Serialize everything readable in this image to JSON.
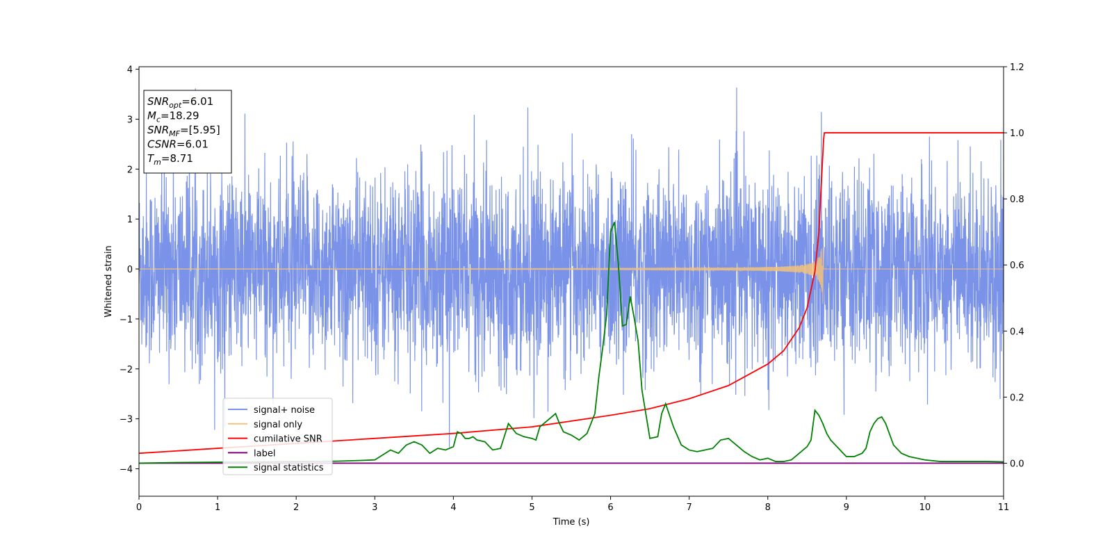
{
  "chart_data": {
    "type": "line",
    "title": "",
    "xlabel": "Time (s)",
    "ylabel": "Whitened strain",
    "y2label": "",
    "xlim": [
      0,
      11
    ],
    "ylim": [
      -4.55,
      4.05
    ],
    "y2lim": [
      -0.1,
      1.2
    ],
    "x_ticks": [
      0,
      1,
      2,
      3,
      4,
      5,
      6,
      7,
      8,
      9,
      10,
      11
    ],
    "y_ticks": [
      -4,
      -3,
      -2,
      -1,
      0,
      1,
      2,
      3,
      4
    ],
    "y2_ticks": [
      0.0,
      0.2,
      0.4,
      0.6,
      0.8,
      1.0,
      1.2
    ],
    "y2_tick_labels": [
      "0.0",
      "0.2",
      "0.4",
      "0.6",
      "0.8",
      "1.0",
      "1.2"
    ],
    "grid": false,
    "legend_position": "lower-left",
    "annotation_box": [
      {
        "base": "SNR",
        "sub": "opt",
        "value": "=6.01"
      },
      {
        "base": "M",
        "sub": "c",
        "value": "=18.29"
      },
      {
        "base": "SNR",
        "sub": "MF",
        "value": "=[5.95]"
      },
      {
        "base": "CSNR",
        "sub": "",
        "value": "=6.01"
      },
      {
        "base": "T",
        "sub": "m",
        "value": "=8.71"
      }
    ],
    "series": [
      {
        "name": "signal+ noise",
        "axis": "left",
        "color": "#7a93e8",
        "description_values": {
          "noise_std": 0.95,
          "y_min": -4.15,
          "y_max": 3.65
        }
      },
      {
        "name": "signal only",
        "axis": "left",
        "color": "#f5c27a",
        "chirp_end": 8.71,
        "amplitude_max": 1.05
      },
      {
        "name": "cumilative SNR",
        "axis": "right",
        "color": "#ff0000",
        "x": [
          0,
          1,
          2,
          3,
          4,
          5,
          6,
          6.5,
          7,
          7.5,
          8,
          8.2,
          8.4,
          8.5,
          8.6,
          8.65,
          8.71,
          8.72,
          11
        ],
        "y": [
          0.03,
          0.045,
          0.06,
          0.075,
          0.09,
          0.11,
          0.145,
          0.165,
          0.195,
          0.235,
          0.3,
          0.34,
          0.41,
          0.47,
          0.58,
          0.7,
          0.98,
          1.0,
          1.0
        ]
      },
      {
        "name": "label",
        "axis": "right",
        "color": "#800080",
        "x": [
          0,
          11
        ],
        "y": [
          0.0,
          0.0
        ]
      },
      {
        "name": "signal statistics",
        "axis": "right",
        "color": "#008000",
        "x": [
          0,
          0.5,
          1,
          1.5,
          2,
          2.5,
          2.8,
          3.0,
          3.1,
          3.2,
          3.3,
          3.4,
          3.5,
          3.55,
          3.6,
          3.7,
          3.8,
          3.9,
          4.0,
          4.05,
          4.1,
          4.15,
          4.2,
          4.25,
          4.3,
          4.4,
          4.5,
          4.6,
          4.7,
          4.8,
          4.9,
          5.0,
          5.05,
          5.1,
          5.2,
          5.3,
          5.35,
          5.4,
          5.5,
          5.6,
          5.7,
          5.8,
          5.85,
          5.9,
          5.95,
          6.0,
          6.05,
          6.1,
          6.15,
          6.2,
          6.25,
          6.3,
          6.35,
          6.4,
          6.5,
          6.6,
          6.65,
          6.7,
          6.8,
          6.9,
          7.0,
          7.1,
          7.2,
          7.3,
          7.4,
          7.5,
          7.6,
          7.7,
          7.8,
          7.9,
          8.0,
          8.1,
          8.2,
          8.3,
          8.4,
          8.5,
          8.55,
          8.6,
          8.65,
          8.7,
          8.75,
          8.8,
          8.9,
          9.0,
          9.1,
          9.2,
          9.25,
          9.3,
          9.35,
          9.4,
          9.45,
          9.5,
          9.6,
          9.7,
          9.8,
          9.9,
          10.0,
          10.2,
          10.5,
          10.8,
          11.0
        ],
        "y": [
          0.0,
          0.002,
          0.003,
          0.004,
          0.005,
          0.006,
          0.008,
          0.01,
          0.025,
          0.04,
          0.03,
          0.055,
          0.065,
          0.06,
          0.055,
          0.03,
          0.045,
          0.04,
          0.05,
          0.095,
          0.09,
          0.075,
          0.075,
          0.08,
          0.07,
          0.065,
          0.04,
          0.045,
          0.12,
          0.09,
          0.08,
          0.075,
          0.07,
          0.11,
          0.13,
          0.15,
          0.12,
          0.095,
          0.085,
          0.07,
          0.09,
          0.15,
          0.26,
          0.35,
          0.45,
          0.7,
          0.73,
          0.6,
          0.415,
          0.42,
          0.505,
          0.44,
          0.37,
          0.22,
          0.075,
          0.08,
          0.15,
          0.18,
          0.11,
          0.055,
          0.04,
          0.035,
          0.04,
          0.045,
          0.07,
          0.075,
          0.055,
          0.035,
          0.02,
          0.01,
          0.015,
          0.005,
          0.005,
          0.01,
          0.03,
          0.05,
          0.07,
          0.16,
          0.145,
          0.12,
          0.09,
          0.07,
          0.045,
          0.02,
          0.02,
          0.03,
          0.045,
          0.095,
          0.12,
          0.135,
          0.14,
          0.12,
          0.055,
          0.03,
          0.02,
          0.015,
          0.01,
          0.005,
          0.005,
          0.005,
          0.004
        ]
      }
    ]
  }
}
